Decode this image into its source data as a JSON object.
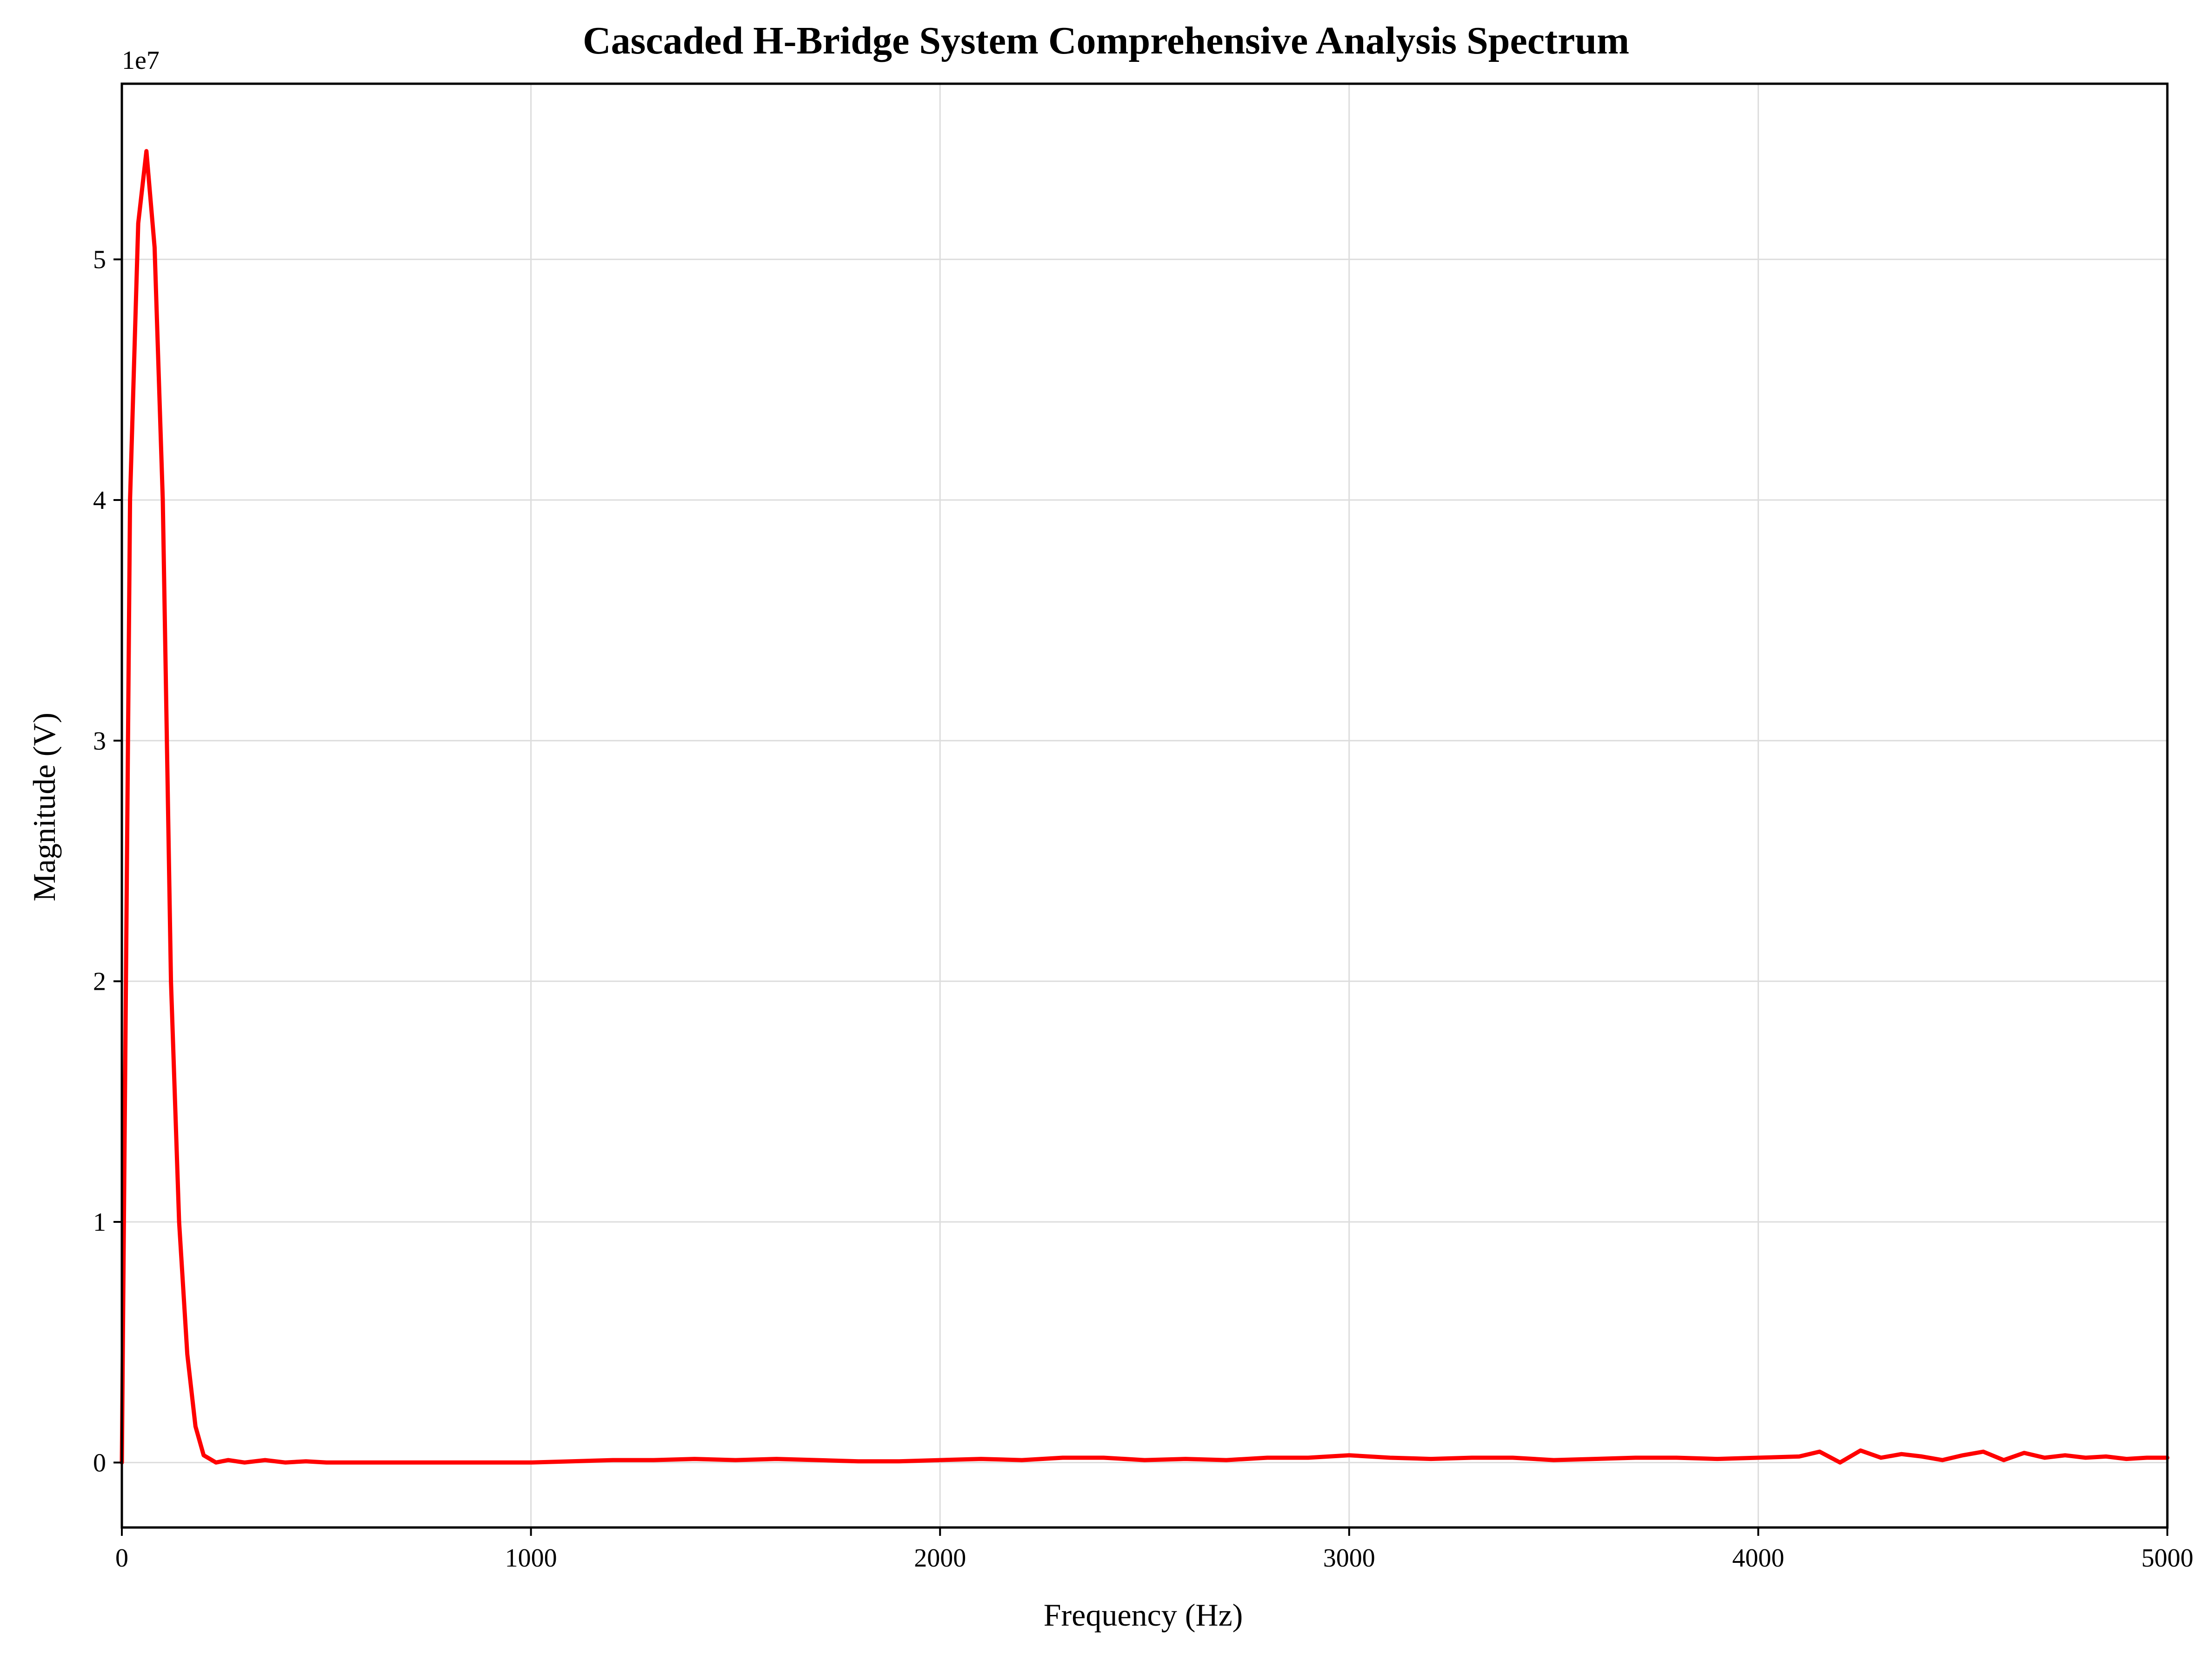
{
  "chart_data": {
    "type": "line",
    "title": "Cascaded H-Bridge System Comprehensive Analysis Spectrum",
    "xlabel": "Frequency (Hz)",
    "ylabel": "Magnitude (V)",
    "y_scale_multiplier": "1e7",
    "xlim": [
      0,
      5000
    ],
    "ylim": [
      -0.27,
      5.73
    ],
    "x_ticks": [
      0,
      1000,
      2000,
      3000,
      4000,
      5000
    ],
    "x_tick_labels": [
      "0",
      "1000",
      "2000",
      "3000",
      "4000",
      "5000"
    ],
    "y_ticks": [
      0,
      1,
      2,
      3,
      4,
      5
    ],
    "y_tick_labels": [
      "0",
      "1",
      "2",
      "3",
      "4",
      "5"
    ],
    "grid": true,
    "legend": "none",
    "series": [
      {
        "color": "#ff0000",
        "x": [
          0,
          20,
          40,
          60,
          80,
          100,
          120,
          140,
          160,
          180,
          200,
          230,
          260,
          300,
          350,
          400,
          450,
          500,
          600,
          700,
          800,
          900,
          1000,
          1100,
          1200,
          1300,
          1400,
          1500,
          1600,
          1700,
          1800,
          1900,
          2000,
          2100,
          2200,
          2300,
          2400,
          2500,
          2600,
          2700,
          2800,
          2900,
          3000,
          3100,
          3200,
          3300,
          3400,
          3500,
          3600,
          3700,
          3800,
          3900,
          4000,
          4100,
          4150,
          4200,
          4250,
          4300,
          4350,
          4400,
          4450,
          4500,
          4550,
          4600,
          4650,
          4700,
          4750,
          4800,
          4850,
          4900,
          4950,
          5000
        ],
        "y": [
          0,
          4.0,
          5.15,
          5.45,
          5.05,
          4.0,
          2.0,
          1.0,
          0.45,
          0.15,
          0.03,
          0,
          0.01,
          0,
          0.01,
          0,
          0.005,
          0,
          0,
          0,
          0,
          0,
          0,
          0.005,
          0.01,
          0.01,
          0.015,
          0.01,
          0.015,
          0.01,
          0.005,
          0.005,
          0.01,
          0.015,
          0.01,
          0.02,
          0.02,
          0.01,
          0.015,
          0.01,
          0.02,
          0.02,
          0.03,
          0.02,
          0.015,
          0.02,
          0.02,
          0.01,
          0.015,
          0.02,
          0.02,
          0.015,
          0.02,
          0.025,
          0.045,
          0.0,
          0.05,
          0.02,
          0.035,
          0.025,
          0.01,
          0.03,
          0.045,
          0.01,
          0.04,
          0.02,
          0.03,
          0.02,
          0.025,
          0.015,
          0.02,
          0.02
        ]
      }
    ]
  }
}
